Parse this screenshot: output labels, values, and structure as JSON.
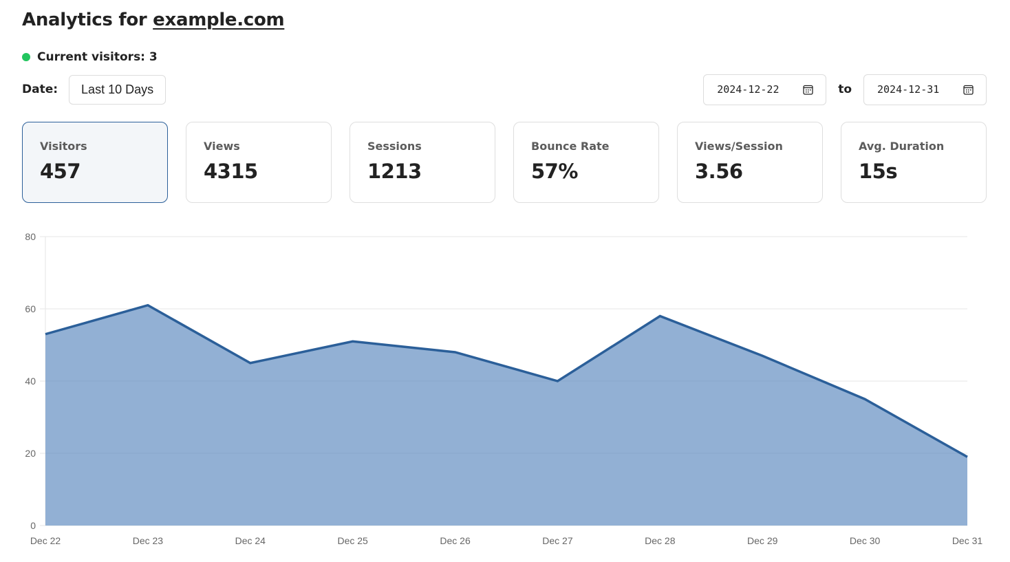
{
  "header": {
    "title_prefix": "Analytics for ",
    "site_link": "example.com"
  },
  "current_visitors": {
    "label": "Current visitors: 3",
    "count": 3,
    "status_color": "#22c55e"
  },
  "date_filter": {
    "label": "Date:",
    "range_selected": "Last 10 Days",
    "start_date": "2024-12-22",
    "to_label": "to",
    "end_date": "2024-12-31",
    "calendar_icon": "calendar-icon"
  },
  "metrics": [
    {
      "label": "Visitors",
      "value": "457",
      "active": true
    },
    {
      "label": "Views",
      "value": "4315",
      "active": false
    },
    {
      "label": "Sessions",
      "value": "1213",
      "active": false
    },
    {
      "label": "Bounce Rate",
      "value": "57%",
      "active": false
    },
    {
      "label": "Views/Session",
      "value": "3.56",
      "active": false
    },
    {
      "label": "Avg. Duration",
      "value": "15s",
      "active": false
    }
  ],
  "colors": {
    "accent": "#2b5f99",
    "area_fill": "#92b0d4",
    "grid": "#e5e5e5",
    "axis_text": "#666666"
  },
  "chart_data": {
    "type": "area",
    "title": "",
    "xlabel": "",
    "ylabel": "",
    "categories": [
      "Dec 22",
      "Dec 23",
      "Dec 24",
      "Dec 25",
      "Dec 26",
      "Dec 27",
      "Dec 28",
      "Dec 29",
      "Dec 30",
      "Dec 31"
    ],
    "series": [
      {
        "name": "Visitors",
        "values": [
          53,
          61,
          45,
          51,
          48,
          40,
          58,
          47,
          35,
          19
        ]
      }
    ],
    "ylim": [
      0,
      80
    ],
    "yticks": [
      0,
      20,
      40,
      60,
      80
    ],
    "grid": true,
    "legend": "none"
  }
}
